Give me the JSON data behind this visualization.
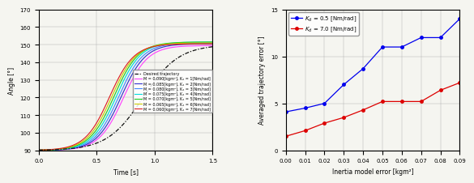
{
  "left": {
    "xlim": [
      0,
      1.5
    ],
    "ylim": [
      90,
      170
    ],
    "yticks": [
      90,
      100,
      110,
      120,
      130,
      140,
      150,
      160,
      170
    ],
    "xticks": [
      0,
      0.5,
      1.0,
      1.5
    ],
    "xlabel": "Time [s]",
    "ylabel": "Angle [°]",
    "desired_color": "#111111",
    "lines": [
      {
        "M": "0.090",
        "K": 1,
        "color": "#ff44ff",
        "t0": 0.73,
        "final": 149.5
      },
      {
        "M": "0.085",
        "K": 2,
        "color": "#3333cc",
        "t0": 0.71,
        "final": 150.5
      },
      {
        "M": "0.080",
        "K": 3,
        "color": "#4488ff",
        "t0": 0.69,
        "final": 151.0
      },
      {
        "M": "0.075",
        "K": 4,
        "color": "#00dddd",
        "t0": 0.67,
        "final": 151.5
      },
      {
        "M": "0.070",
        "K": 5,
        "color": "#22cc22",
        "t0": 0.65,
        "final": 151.5
      },
      {
        "M": "0.065",
        "K": 6,
        "color": "#cccc00",
        "t0": 0.63,
        "final": 151.0
      },
      {
        "M": "0.060",
        "K": 7,
        "color": "#dd2222",
        "t0": 0.61,
        "final": 150.5
      }
    ]
  },
  "right": {
    "xlim": [
      0,
      0.09
    ],
    "ylim": [
      0,
      15
    ],
    "xticks": [
      0,
      0.01,
      0.02,
      0.03,
      0.04,
      0.05,
      0.06,
      0.07,
      0.08,
      0.09
    ],
    "yticks": [
      0,
      5,
      10,
      15
    ],
    "xlabel": "Inertia model error [kgm²]",
    "ylabel": "Averaged trajectory error [°]",
    "blue_x": [
      0,
      0.01,
      0.02,
      0.03,
      0.04,
      0.05,
      0.06,
      0.07,
      0.08,
      0.09
    ],
    "blue_y": [
      4.1,
      4.5,
      5.0,
      7.0,
      8.7,
      11.0,
      11.0,
      12.0,
      12.0,
      14.0
    ],
    "red_x": [
      0,
      0.01,
      0.02,
      0.03,
      0.04,
      0.05,
      0.06,
      0.07,
      0.08,
      0.09
    ],
    "red_y": [
      1.5,
      2.1,
      2.9,
      3.5,
      4.3,
      5.2,
      5.2,
      5.2,
      6.4,
      7.2
    ],
    "blue_label": "$K_d$ = 0.5 [Nm/rad]",
    "red_label": "$K_d$ = 7.0 [Nm/rad]",
    "blue_color": "#0000ee",
    "red_color": "#dd0000"
  }
}
